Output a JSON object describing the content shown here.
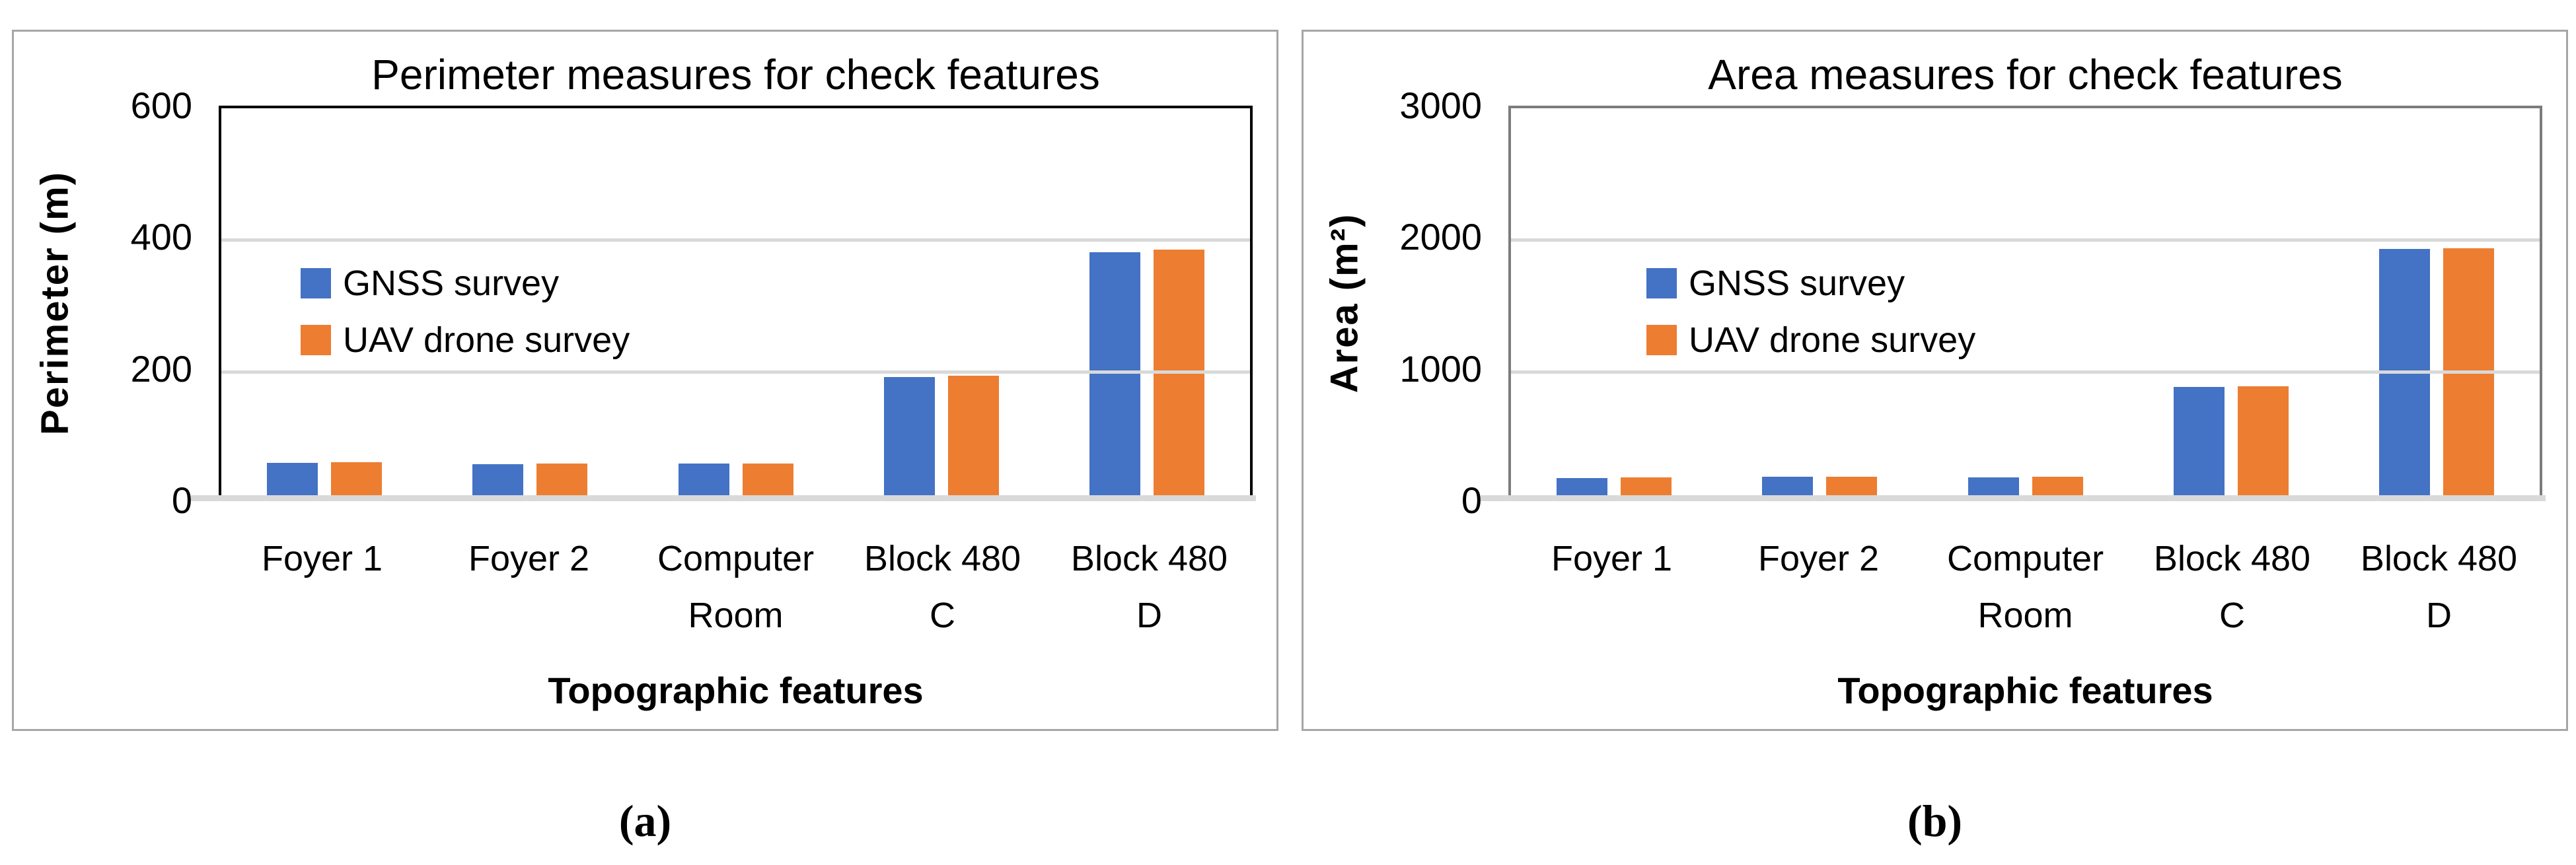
{
  "chart_data": [
    {
      "type": "bar",
      "title": "Perimeter measures for check features",
      "xlabel": "Topographic features",
      "ylabel": "Perimeter (m)",
      "ylim": [
        0,
        600
      ],
      "yticks": [
        0,
        200,
        400,
        600
      ],
      "ytick_labels_top_down": [
        "600",
        "400",
        "200",
        "0"
      ],
      "grid": true,
      "legend_position": "inside-left",
      "caption": "(a)",
      "categories": [
        "Foyer 1",
        "Foyer 2",
        "Computer Room",
        "Block 480 C",
        "Block 480 D"
      ],
      "series": [
        {
          "name": "GNSS survey",
          "color": "#4472C4",
          "values": [
            57,
            55,
            56,
            188,
            377
          ]
        },
        {
          "name": "UAV drone survey",
          "color": "#ED7D31",
          "values": [
            58,
            56,
            56,
            190,
            381
          ]
        }
      ]
    },
    {
      "type": "bar",
      "title": "Area measures for check features",
      "xlabel": "Topographic features",
      "ylabel": "Area (m²)",
      "ylim": [
        0,
        3000
      ],
      "yticks": [
        0,
        1000,
        2000,
        3000
      ],
      "ytick_labels_top_down": [
        "3000",
        "2000",
        "1000",
        "0"
      ],
      "grid": true,
      "legend_position": "inside-left",
      "caption": "(b)",
      "categories": [
        "Foyer 1",
        "Foyer 2",
        "Computer Room",
        "Block 480 C",
        "Block 480 D"
      ],
      "series": [
        {
          "name": "GNSS survey",
          "color": "#4472C4",
          "values": [
            172,
            180,
            178,
            863,
            1912
          ]
        },
        {
          "name": "UAV drone survey",
          "color": "#ED7D31",
          "values": [
            174,
            181,
            179,
            866,
            1915
          ]
        }
      ]
    }
  ],
  "colors": {
    "series_blue": "#4472C4",
    "series_orange": "#ED7D31",
    "gridline": "#D9D9D9",
    "panel_border": "#A6A6A6",
    "plot_border_left_chart": "#000000",
    "plot_border_right_chart": "#7C7C7C"
  }
}
